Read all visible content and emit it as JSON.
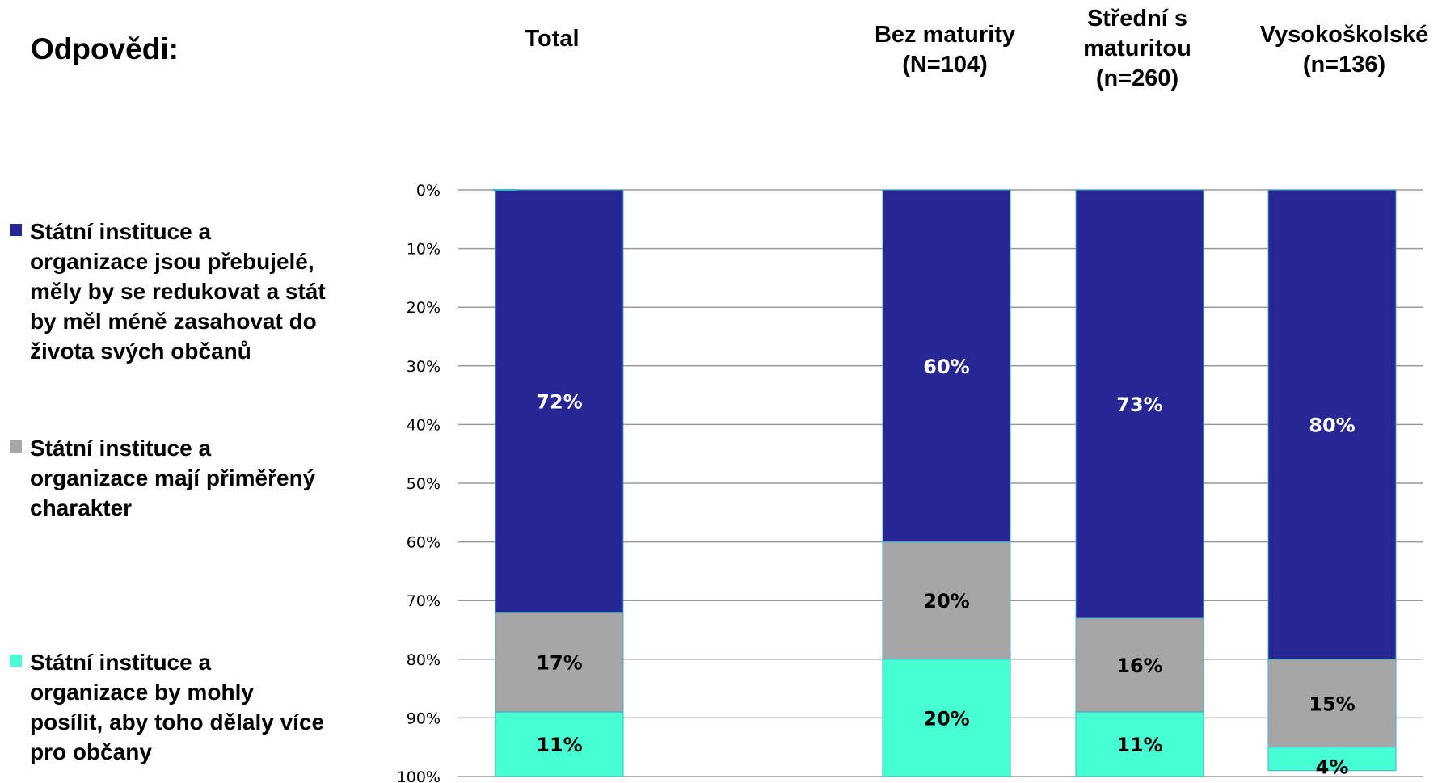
{
  "heading": "Odpovědi:",
  "column_headers": [
    [
      "Total"
    ],
    [
      "Bez maturity",
      "(N=104)"
    ],
    [
      "Střední s",
      "maturitou",
      "(n=260)"
    ],
    [
      "Vysokoškolské",
      "(n=136)"
    ]
  ],
  "legend": [
    {
      "label": [
        "Státní instituce a",
        "organizace jsou přebujelé,",
        "měly by se redukovat a stát",
        "by měl méně zasahovat do",
        "života svých občanů"
      ],
      "color": "#262694"
    },
    {
      "label": [
        "Státní instituce a",
        "organizace mají přiměřený",
        "charakter"
      ],
      "color": "#A6A6A6"
    },
    {
      "label": [
        "Státní instituce a",
        "organizace by mohly",
        "posílit, aby toho dělaly více",
        "pro občany"
      ],
      "color": "#46FFD2"
    }
  ],
  "chart_data": {
    "type": "bar",
    "stacked": true,
    "orientation": "vertical",
    "y_axis_reversed": true,
    "ylim": [
      0,
      100
    ],
    "y_ticks": [
      "0%",
      "10%",
      "20%",
      "30%",
      "40%",
      "50%",
      "60%",
      "70%",
      "80%",
      "90%",
      "100%"
    ],
    "grid": true,
    "categories": [
      "Total",
      "",
      "Bez maturity",
      "Střední s maturitou",
      "Vysokoškolské"
    ],
    "series": [
      {
        "color": "#262694",
        "label_color": "#ffffff",
        "values": [
          72,
          null,
          60,
          73,
          80
        ],
        "labels": [
          "72%",
          "",
          "60%",
          "73%",
          "80%"
        ]
      },
      {
        "color": "#A6A6A6",
        "label_color": "#000000",
        "values": [
          17,
          null,
          20,
          16,
          15
        ],
        "labels": [
          "17%",
          "",
          "20%",
          "16%",
          "15%"
        ]
      },
      {
        "color": "#46FFD2",
        "label_color": "#000000",
        "values": [
          11,
          null,
          20,
          11,
          4
        ],
        "labels": [
          "11%",
          "",
          "20%",
          "11%",
          "4%"
        ]
      }
    ]
  }
}
